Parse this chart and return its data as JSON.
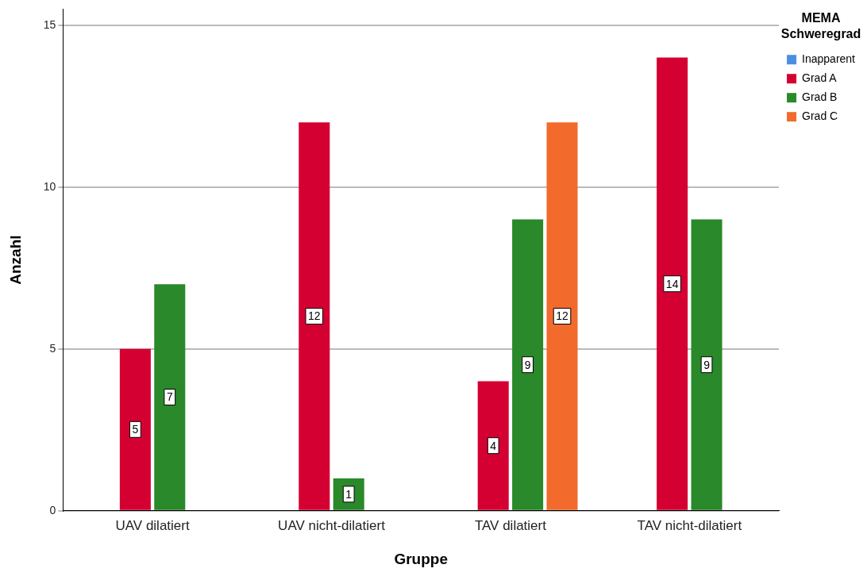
{
  "chart_data": {
    "type": "bar",
    "categories": [
      "UAV dilatiert",
      "UAV nicht-dilatiert",
      "TAV dilatiert",
      "TAV nicht-dilatiert"
    ],
    "series": [
      {
        "name": "Inapparent",
        "color": "#4a90e2",
        "values": [
          null,
          null,
          null,
          null
        ]
      },
      {
        "name": "Grad A",
        "color": "#d50032",
        "values": [
          5,
          12,
          4,
          14
        ]
      },
      {
        "name": "Grad B",
        "color": "#2a892a",
        "values": [
          7,
          1,
          9,
          9
        ]
      },
      {
        "name": "Grad C",
        "color": "#f26b2d",
        "values": [
          null,
          null,
          12,
          null
        ]
      }
    ],
    "xlabel": "Gruppe",
    "ylabel": "Anzahl",
    "legend_title": "MEMA Schweregrad",
    "ylim": [
      0,
      15.5
    ],
    "yticks": [
      0,
      5,
      10,
      15
    ],
    "grid": "y",
    "legend": "top right",
    "data_labels": true
  }
}
